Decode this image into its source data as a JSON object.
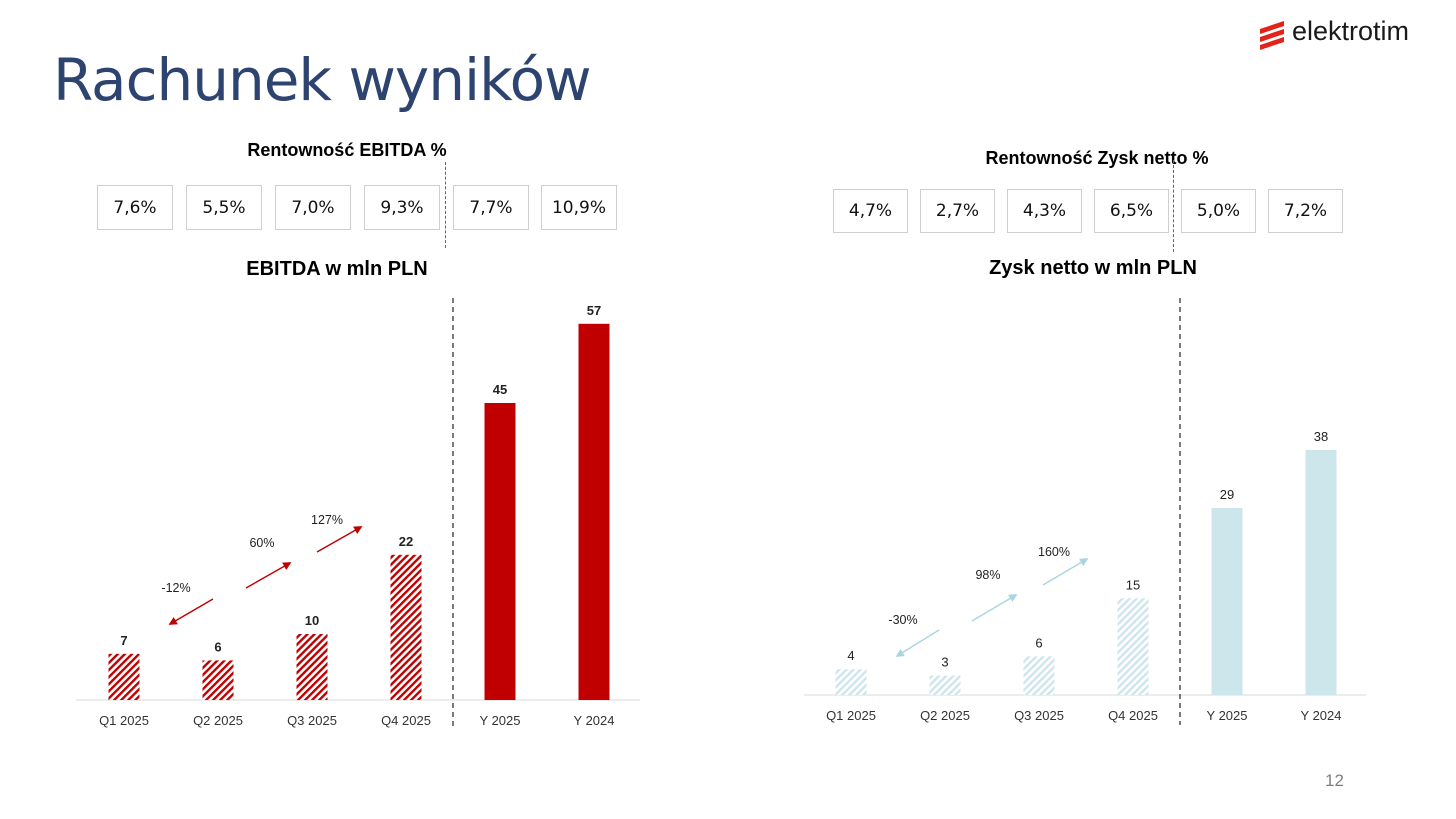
{
  "page": {
    "title": "Rachunek wyników",
    "page_number": "12",
    "logo_text": "elektrotim",
    "brand_color": "#c00000"
  },
  "left_panel": {
    "ratio_title": "Rentowność EBITDA %",
    "ratios": [
      "7,6%",
      "5,5%",
      "7,0%",
      "9,3%",
      "7,7%",
      "10,9%"
    ]
  },
  "right_panel": {
    "ratio_title": "Rentowność Zysk netto %",
    "ratios": [
      "4,7%",
      "2,7%",
      "4,3%",
      "6,5%",
      "5,0%",
      "7,2%"
    ]
  },
  "chart_data": [
    {
      "type": "bar",
      "title": "EBITDA w mln PLN",
      "categories": [
        "Q1 2025",
        "Q2 2025",
        "Q3 2025",
        "Q4 2025",
        "Y 2025",
        "Y 2024"
      ],
      "values": [
        7,
        6,
        10,
        22,
        45,
        57
      ],
      "bar_styles": [
        "hatched",
        "hatched",
        "hatched",
        "hatched",
        "solid",
        "solid"
      ],
      "color": "#c00000",
      "growth_annotations": [
        "-12%",
        "60%",
        "127%"
      ],
      "separator_after_category": "Q4 2025",
      "ylim": [
        0,
        60
      ],
      "grid": false,
      "bold_labels": true
    },
    {
      "type": "bar",
      "title": "Zysk netto w mln PLN",
      "categories": [
        "Q1 2025",
        "Q2 2025",
        "Q3 2025",
        "Q4 2025",
        "Y 2025",
        "Y 2024"
      ],
      "values": [
        4,
        3,
        6,
        15,
        29,
        38
      ],
      "bar_styles": [
        "hatched",
        "hatched",
        "hatched",
        "hatched",
        "solid",
        "solid"
      ],
      "color": "#cde6ec",
      "growth_annotations": [
        "-30%",
        "98%",
        "160%"
      ],
      "separator_after_category": "Q4 2025",
      "ylim": [
        0,
        60
      ],
      "grid": false,
      "bold_labels": false
    }
  ]
}
